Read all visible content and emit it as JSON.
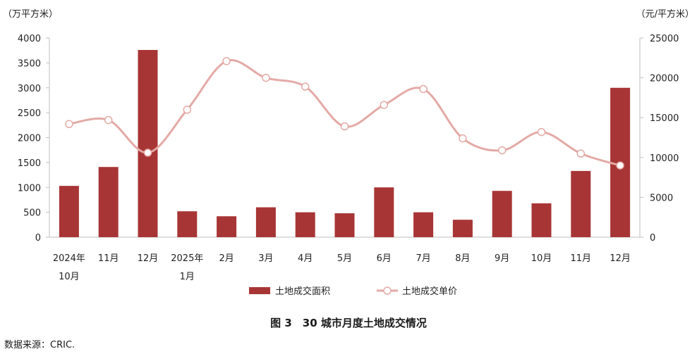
{
  "chart_data": {
    "type": "bar+line",
    "categories": [
      [
        "2024年",
        "10月"
      ],
      [
        "11月"
      ],
      [
        "12月"
      ],
      [
        "2025年",
        "1月"
      ],
      [
        "2月"
      ],
      [
        "3月"
      ],
      [
        "4月"
      ],
      [
        "5月"
      ],
      [
        "6月"
      ],
      [
        "7月"
      ],
      [
        "8月"
      ],
      [
        "9月"
      ],
      [
        "10月"
      ],
      [
        "11月"
      ],
      [
        "12月"
      ]
    ],
    "series": [
      {
        "name": "土地成交面积",
        "kind": "bar",
        "axis": "left",
        "color": "#a83535",
        "values": [
          1030,
          1410,
          3760,
          520,
          420,
          600,
          500,
          480,
          1000,
          500,
          350,
          930,
          680,
          1330,
          3000
        ]
      },
      {
        "name": "土地成交单价",
        "kind": "line",
        "axis": "right",
        "color": "#e3aaa6",
        "values": [
          14200,
          14700,
          10600,
          16000,
          22100,
          20000,
          18900,
          13900,
          16600,
          18600,
          12400,
          10900,
          13200,
          10500,
          9000
        ]
      }
    ],
    "y_left": {
      "unit": "（万平方米）",
      "min": 0,
      "max": 4000,
      "ticks": [
        0,
        500,
        1000,
        1500,
        2000,
        2500,
        3000,
        3500,
        4000
      ]
    },
    "y_right": {
      "unit": "（元/平方米）",
      "min": 0,
      "max": 25000,
      "ticks": [
        0,
        5000,
        10000,
        15000,
        20000,
        25000
      ]
    },
    "legend_position": "bottom",
    "grid": false
  },
  "caption": "图 3　30 城市月度土地成交情况",
  "source": "数据来源：CRIC."
}
